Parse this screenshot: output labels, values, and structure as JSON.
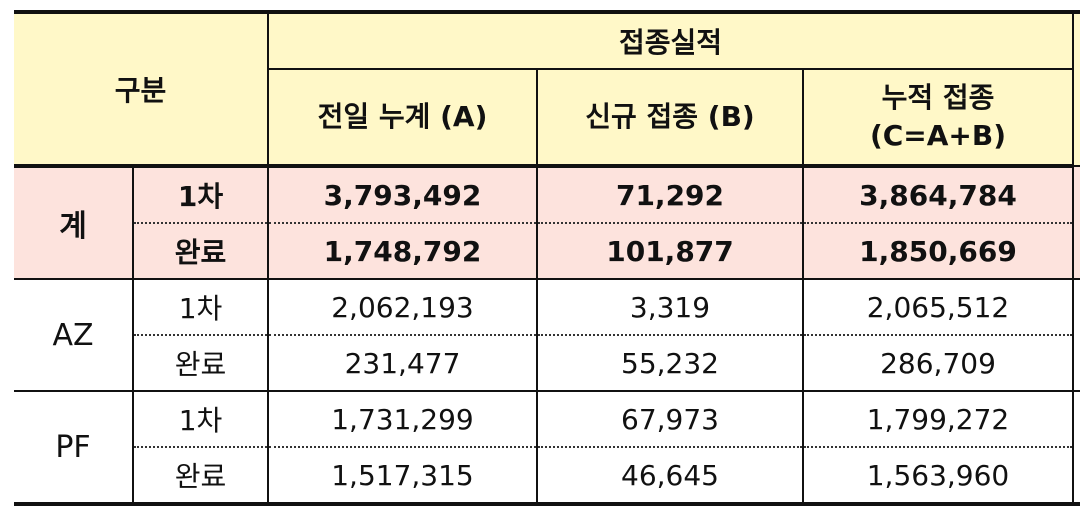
{
  "header": {
    "gubun": "구분",
    "group": "접종실적",
    "col_a": "전일 누계 (A)",
    "col_b": "신규 접종 (B)",
    "col_c_line1": "누적 접종",
    "col_c_line2": "(C=A+B)"
  },
  "rows": {
    "total": {
      "label": "계",
      "first": {
        "label": "1차",
        "a": "3,793,492",
        "b": "71,292",
        "c": "3,864,784"
      },
      "done": {
        "label": "완료",
        "a": "1,748,792",
        "b": "101,877",
        "c": "1,850,669"
      }
    },
    "az": {
      "label": "AZ",
      "first": {
        "label": "1차",
        "a": "2,062,193",
        "b": "3,319",
        "c": "2,065,512"
      },
      "done": {
        "label": "완료",
        "a": "231,477",
        "b": "55,232",
        "c": "286,709"
      }
    },
    "pf": {
      "label": "PF",
      "first": {
        "label": "1차",
        "a": "1,731,299",
        "b": "67,973",
        "c": "1,799,272"
      },
      "done": {
        "label": "완료",
        "a": "1,517,315",
        "b": "46,645",
        "c": "1,563,960"
      }
    }
  }
}
